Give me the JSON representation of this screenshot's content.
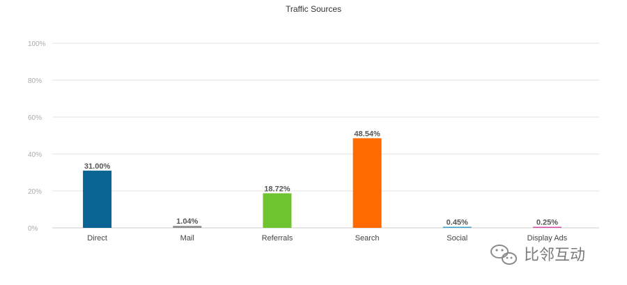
{
  "chart_data": {
    "type": "bar",
    "title": "Traffic Sources",
    "xlabel": "",
    "ylabel": "",
    "ylim": [
      0,
      100
    ],
    "yticks": [
      "0%",
      "20%",
      "40%",
      "60%",
      "80%",
      "100%"
    ],
    "ytick_values": [
      0,
      20,
      40,
      60,
      80,
      100
    ],
    "grid": true,
    "legend": "none",
    "categories": [
      "Direct",
      "Mail",
      "Referrals",
      "Search",
      "Social",
      "Display Ads"
    ],
    "values": [
      31.0,
      1.04,
      18.72,
      48.54,
      0.45,
      0.25
    ],
    "data_labels": [
      "31.00%",
      "1.04%",
      "18.72%",
      "48.54%",
      "0.45%",
      "0.25%"
    ],
    "colors": [
      "#0b6394",
      "#8c8c8c",
      "#6ec42f",
      "#ff6a00",
      "#3aa0c8",
      "#d84aa8"
    ]
  },
  "watermark": {
    "text": "比邻互动"
  }
}
